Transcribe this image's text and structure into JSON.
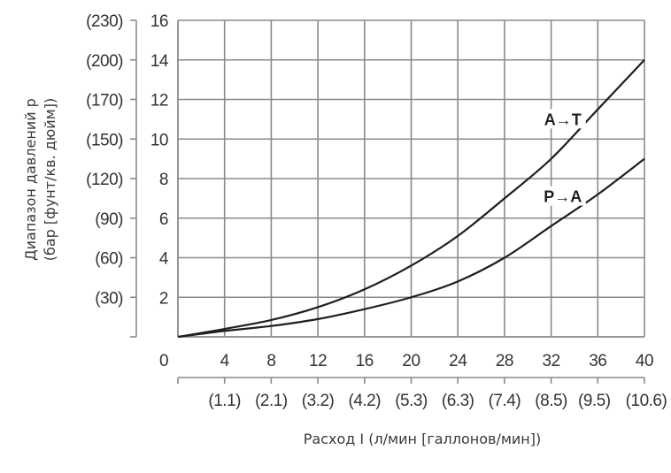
{
  "chart_data": {
    "type": "line",
    "title": "",
    "xlabel": "Расход I (л/мин [галлонов/мин])",
    "ylabel_line1": "Диапазон давлений р",
    "ylabel_line2": "(бар [фунт/кв. дюйм])",
    "xlim": [
      0,
      40
    ],
    "ylim": [
      0,
      16
    ],
    "grid": true,
    "legend_position": "inline labels",
    "x_ticks": [
      0,
      4,
      8,
      12,
      16,
      20,
      24,
      28,
      32,
      36,
      40
    ],
    "x_tick_labels": [
      "0",
      "4",
      "8",
      "12",
      "16",
      "20",
      "24",
      "28",
      "32",
      "36",
      "40"
    ],
    "x_secondary_tick_labels": [
      "(1.1)",
      "(2.1)",
      "(3.2)",
      "(4.2)",
      "(5.3)",
      "(6.3)",
      "(7.4)",
      "(8.5)",
      "(9.5)",
      "(10.6)"
    ],
    "y_ticks": [
      2,
      4,
      6,
      8,
      10,
      12,
      14,
      16
    ],
    "y_tick_labels": [
      "2",
      "4",
      "6",
      "8",
      "10",
      "12",
      "14",
      "16"
    ],
    "y_secondary_tick_labels": [
      "(30)",
      "(60)",
      "(90)",
      "(120)",
      "(150)",
      "(170)",
      "(200)",
      "(230)"
    ],
    "x": [
      0,
      4,
      8,
      12,
      16,
      20,
      24,
      28,
      32,
      36,
      40
    ],
    "series": [
      {
        "name": "A→T",
        "values": [
          0,
          0.4,
          0.85,
          1.5,
          2.4,
          3.6,
          5.1,
          7.0,
          9.0,
          11.5,
          14.0
        ]
      },
      {
        "name": "P→A",
        "values": [
          0,
          0.3,
          0.55,
          0.9,
          1.4,
          2.0,
          2.8,
          4.0,
          5.6,
          7.2,
          9.0
        ]
      }
    ],
    "annotations": [
      {
        "text": "A→T",
        "x": 33,
        "y": 10.8
      },
      {
        "text": "P→A",
        "x": 33,
        "y": 6.9
      }
    ]
  },
  "colors": {
    "grid": "#8a8a8a",
    "curve": "#1e1e1e",
    "text": "#333333"
  }
}
